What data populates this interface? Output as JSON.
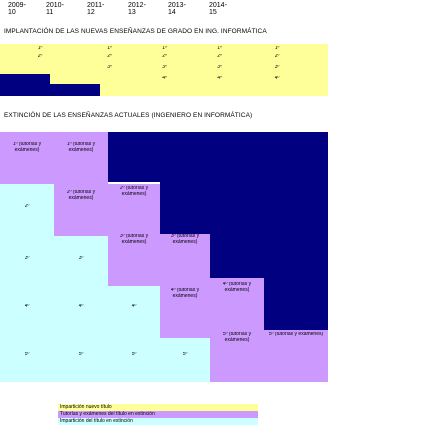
{
  "years": [
    "2009-10",
    "2010-11",
    "2011-12",
    "2012-13",
    "2013-14",
    "2014-15"
  ],
  "section1": {
    "title": "IMPLANTACIÓN DE LAS NUEVAS ENSEÑANZAS DE GRADO EN ING. INFORMÁTICA",
    "rows": [
      [
        "",
        "1º",
        "1º",
        "1º",
        "1º",
        "1º"
      ],
      [
        "",
        "2º",
        "2º",
        "2º",
        "2º",
        "2º"
      ],
      [
        "",
        "",
        "3º",
        "3º",
        "3º",
        "3º"
      ],
      [
        "",
        "",
        "",
        "4º",
        "4º",
        "4º"
      ]
    ]
  },
  "section2": {
    "title": "EXTINCIÓN DE LAS ENSEÑANZAS ACTUALES (INGENIERO EN INFORMÁTICA)",
    "c1": "1º (tutorías y exámenes)",
    "c2": "2º (tutorías y exámenes)",
    "c3": "3º (tutorías y exámenes)",
    "c4": "4º (tutorías y exámenes)",
    "c5": "5º (tutorías y exámenes)",
    "y1": "1º",
    "y2": "2º",
    "y3": "3º",
    "y4": "4º",
    "y5": "5º"
  },
  "legend": {
    "new": "Impartición nuevo título",
    "tutorias": "Tutorías y exámenes del título en extinción",
    "old": "Impartición del título en extinción"
  },
  "colors": {
    "yellow": "#ffff99",
    "navy": "#000080",
    "cyan": "#ccffff",
    "lavender": "#cc99ff"
  }
}
